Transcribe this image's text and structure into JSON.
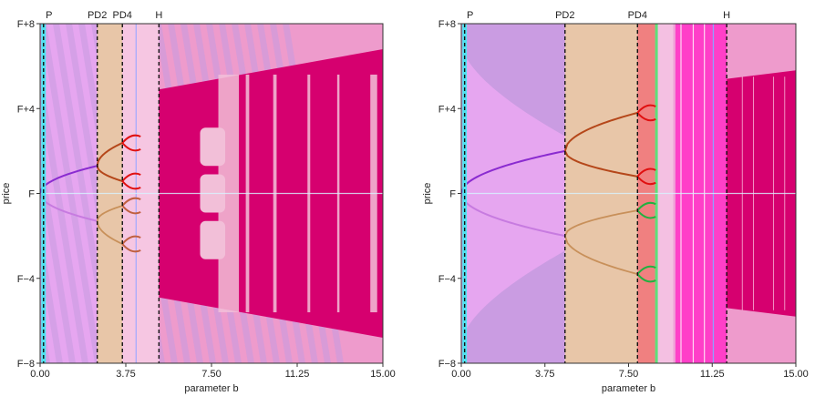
{
  "chart_data": [
    {
      "type": "bifurcation",
      "xlabel": "parameter b",
      "ylabel": "price",
      "xlim": [
        0,
        15
      ],
      "ylim": [
        -8,
        8
      ],
      "xticks": [
        0,
        3.75,
        7.5,
        11.25,
        15
      ],
      "xtick_labels": [
        "0.00",
        "3.75",
        "7.50",
        "11.25",
        "15.00"
      ],
      "yticks": [
        -8,
        -4,
        0,
        4,
        8
      ],
      "ytick_labels": [
        "F−8",
        "F−4",
        "F",
        "F+4",
        "F+8"
      ],
      "markers": [
        {
          "label": "P",
          "b": 0.15
        },
        {
          "label": "PD2",
          "b": 2.5
        },
        {
          "label": "PD4",
          "b": 3.6
        },
        {
          "label": "H",
          "b": 5.2
        }
      ],
      "bifurcation": {
        "pd2": 2.5,
        "pd4": 3.6,
        "h": 5.2,
        "cone_end_half_width": 6.8
      },
      "colors": {
        "background": "#ee9bcc",
        "left_band": "#e6a6f0",
        "stripe": "#c79be0",
        "period2_region": "#e8c6a8",
        "chaos": "#d6006f",
        "holes": "#f2bfd8",
        "upper_branch": "#8a2bd0",
        "lower_branch": "#c77be0",
        "p2_upper": "#b5471a",
        "p2_lower": "#c8905a",
        "cyan_line": "#4fe3f0"
      }
    },
    {
      "type": "bifurcation",
      "xlabel": "parameter b",
      "ylabel": "price",
      "xlim": [
        0,
        15
      ],
      "ylim": [
        -8,
        8
      ],
      "xticks": [
        0,
        3.75,
        7.5,
        11.25,
        15
      ],
      "xtick_labels": [
        "0.00",
        "3.75",
        "7.50",
        "11.25",
        "15.00"
      ],
      "yticks": [
        -8,
        -4,
        0,
        4,
        8
      ],
      "ytick_labels": [
        "F−8",
        "F−4",
        "F",
        "F+4",
        "F+8"
      ],
      "markers": [
        {
          "label": "P",
          "b": 0.15
        },
        {
          "label": "PD2",
          "b": 4.65
        },
        {
          "label": "PD4",
          "b": 7.9
        },
        {
          "label": "H",
          "b": 11.9
        }
      ],
      "bifurcation": {
        "pd2": 4.65,
        "pd4": 7.9,
        "h": 11.9,
        "cone_end_half_width": 5.8
      },
      "colors": {
        "background": "#ee9bcc",
        "left_band": "#e6a6f0",
        "outer_band": "#c79be0",
        "period2_region": "#e8c6a8",
        "period4_region": "#f08080",
        "mix_region": "#f0a0d8",
        "magenta_region": "#ff3fc8",
        "chaos": "#d6006f",
        "upper_branch": "#8a2bd0",
        "lower_branch": "#c77be0",
        "p2_upper": "#b5471a",
        "p2_lower": "#c8905a",
        "p4_upper": "#e01010",
        "p4_lower": "#22b040",
        "cyan_line": "#4fe3f0",
        "green_line": "#5fe07a",
        "blue_line": "#8fa0ff"
      }
    }
  ]
}
